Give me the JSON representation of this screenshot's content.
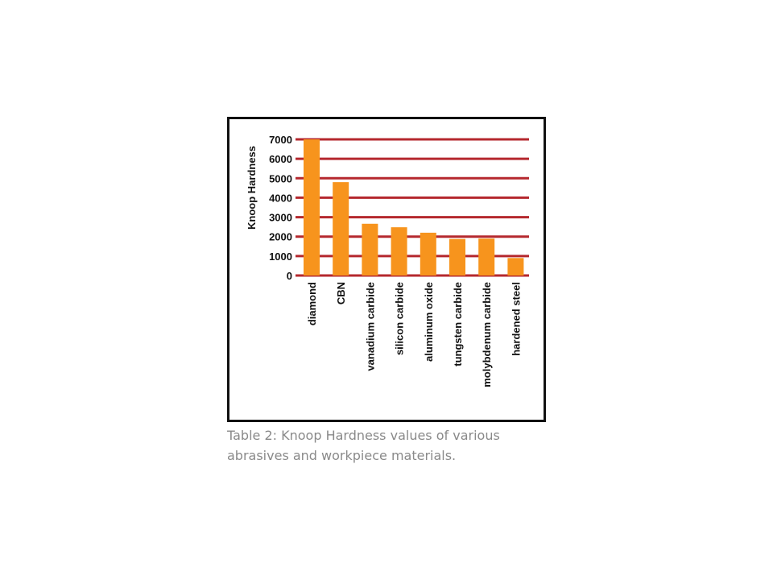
{
  "chart_data": {
    "type": "bar",
    "title": "",
    "xlabel": "",
    "ylabel": "Knoop Hardness",
    "categories": [
      "diamond",
      "CBN",
      "vanadium carbide",
      "silicon carbide",
      "aluminum oxide",
      "tungsten carbide",
      "molybdenum carbide",
      "hardened steel"
    ],
    "values": [
      7000,
      4800,
      2660,
      2480,
      2200,
      1880,
      1900,
      900
    ],
    "ylim": [
      0,
      7000
    ],
    "yticks": [
      0,
      1000,
      2000,
      3000,
      4000,
      5000,
      6000,
      7000
    ],
    "grid": true,
    "colors": {
      "bar": "#f7941d",
      "grid": "#b5282e"
    }
  },
  "caption": "Table 2: Knoop Hardness values of various abrasives and workpiece materials."
}
